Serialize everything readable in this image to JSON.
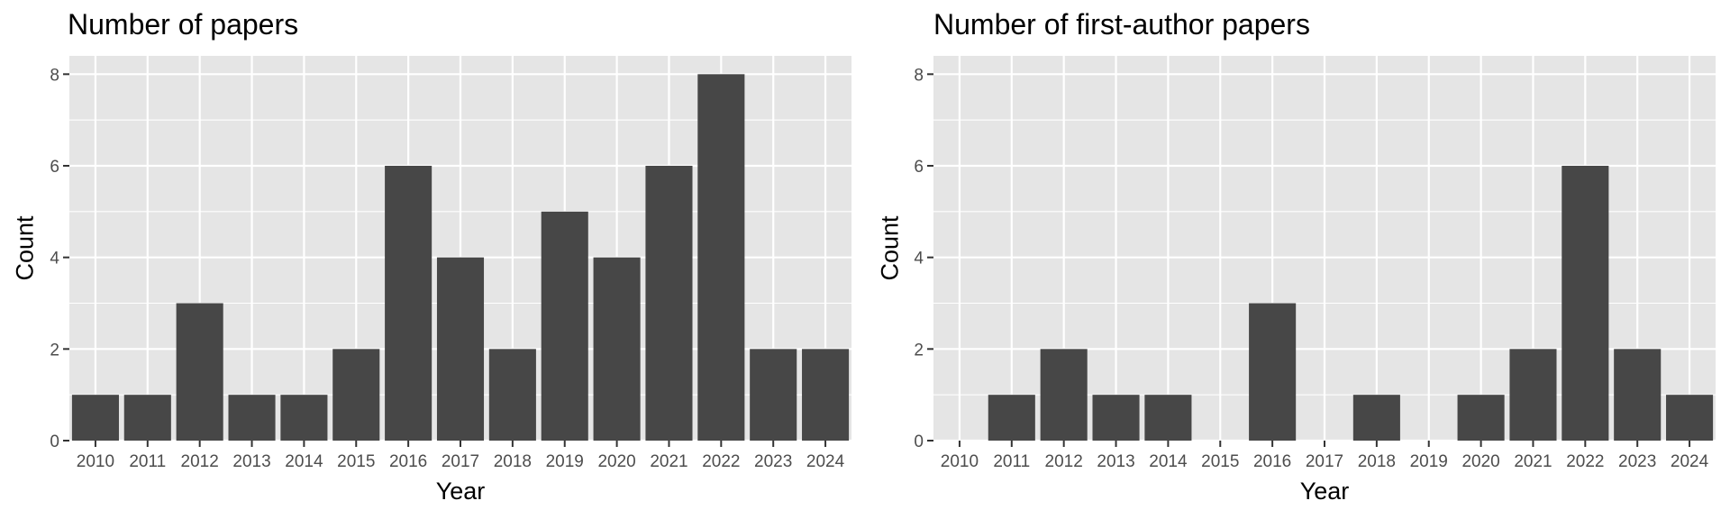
{
  "colors": {
    "panel_background": "#e5e5e5",
    "grid": "#ffffff",
    "bar": "#474747",
    "tick": "#333333",
    "tick_label": "#4d4d4d"
  },
  "chart_data": [
    {
      "type": "bar",
      "title": "Number of papers",
      "xlabel": "Year",
      "ylabel": "Count",
      "categories": [
        "2010",
        "2011",
        "2012",
        "2013",
        "2014",
        "2015",
        "2016",
        "2017",
        "2018",
        "2019",
        "2020",
        "2021",
        "2022",
        "2023",
        "2024"
      ],
      "values": [
        1,
        1,
        3,
        1,
        1,
        2,
        6,
        4,
        2,
        5,
        4,
        6,
        8,
        2,
        2
      ],
      "yticks": [
        0,
        2,
        4,
        6,
        8
      ],
      "ylim": [
        0,
        8.4
      ],
      "grid": true
    },
    {
      "type": "bar",
      "title": "Number of first-author papers",
      "xlabel": "Year",
      "ylabel": "Count",
      "categories": [
        "2010",
        "2011",
        "2012",
        "2013",
        "2014",
        "2015",
        "2016",
        "2017",
        "2018",
        "2019",
        "2020",
        "2021",
        "2022",
        "2023",
        "2024"
      ],
      "values": [
        0,
        1,
        2,
        1,
        1,
        0,
        3,
        0,
        1,
        0,
        1,
        2,
        6,
        2,
        1
      ],
      "yticks": [
        0,
        2,
        4,
        6,
        8
      ],
      "ylim": [
        0,
        8.4
      ],
      "grid": true
    }
  ]
}
